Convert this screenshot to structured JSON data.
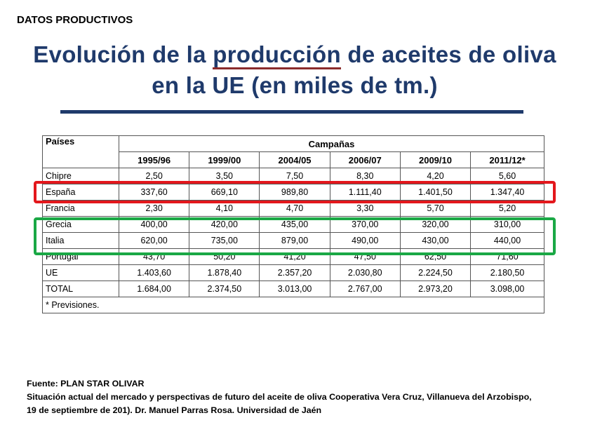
{
  "section_label": "DATOS PRODUCTIVOS",
  "title": {
    "part1": "Evolución de la ",
    "highlight": "producción",
    "part2": " de aceites de oliva en la UE (en miles de tm.)"
  },
  "table": {
    "header_country": "Países",
    "header_group": "Campañas",
    "campaigns": [
      "1995/96",
      "1999/00",
      "2004/05",
      "2006/07",
      "2009/10",
      "2011/12*"
    ],
    "rows": [
      {
        "country": "Chipre",
        "values": [
          "2,50",
          "3,50",
          "7,50",
          "8,30",
          "4,20",
          "5,60"
        ]
      },
      {
        "country": "España",
        "values": [
          "337,60",
          "669,10",
          "989,80",
          "1.111,40",
          "1.401,50",
          "1.347,40"
        ]
      },
      {
        "country": "Francia",
        "values": [
          "2,30",
          "4,10",
          "4,70",
          "3,30",
          "5,70",
          "5,20"
        ]
      },
      {
        "country": "Grecia",
        "values": [
          "400,00",
          "420,00",
          "435,00",
          "370,00",
          "320,00",
          "310,00"
        ]
      },
      {
        "country": "Italia",
        "values": [
          "620,00",
          "735,00",
          "879,00",
          "490,00",
          "430,00",
          "440,00"
        ]
      },
      {
        "country": "Portugal",
        "values": [
          "43,70",
          "50,20",
          "41,20",
          "47,50",
          "62,50",
          "71,60"
        ]
      },
      {
        "country": "UE",
        "values": [
          "1.403,60",
          "1.878,40",
          "2.357,20",
          "2.030,80",
          "2.224,50",
          "2.180,50"
        ]
      },
      {
        "country": "TOTAL",
        "values": [
          "1.684,00",
          "2.374,50",
          "3.013,00",
          "2.767,00",
          "2.973,20",
          "3.098,00"
        ]
      }
    ],
    "note": "* Previsiones."
  },
  "highlight_colors": {
    "red": "#e3171c",
    "green": "#1aa845"
  },
  "footer": {
    "line1": "Fuente: PLAN STAR OLIVAR",
    "line2": "Situación actual del mercado y perspectivas de futuro del aceite de oliva Cooperativa Vera Cruz, Villanueva del Arzobispo,",
    "line3": "19 de septiembre de 201). Dr. Manuel Parras Rosa. Universidad de Jaén"
  }
}
